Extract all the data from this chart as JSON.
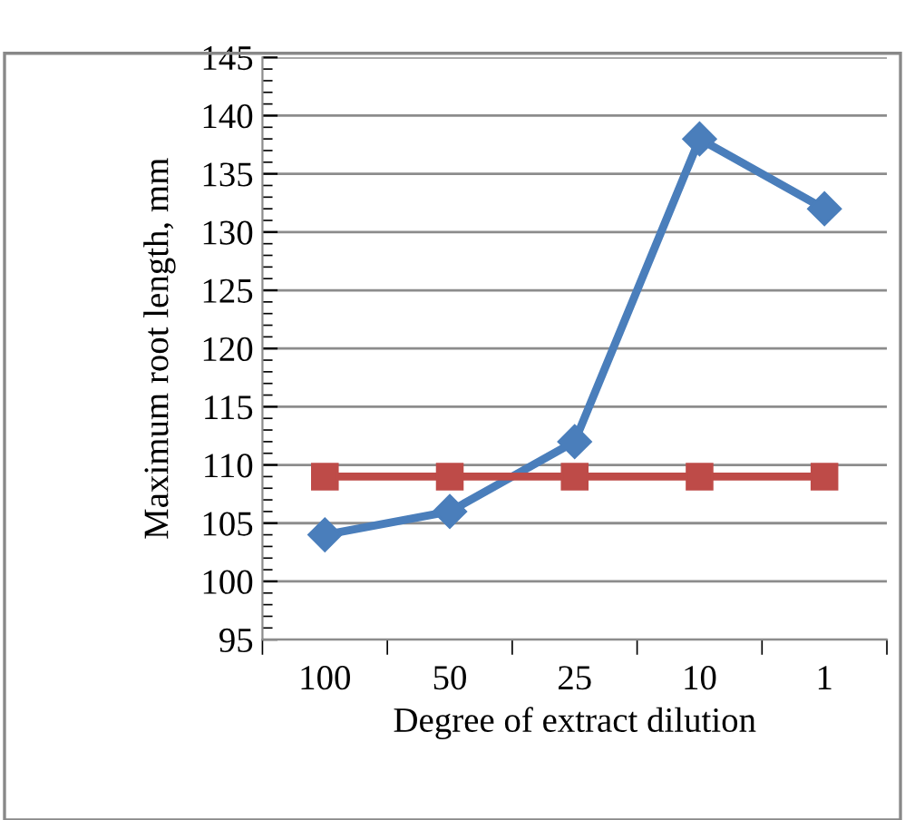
{
  "chart_data": {
    "type": "line",
    "xlabel": "Degree of extract dilution",
    "ylabel": "Maximum root length, mm",
    "categories": [
      "100",
      "50",
      "25",
      "10",
      "1"
    ],
    "series": [
      {
        "color": "#4a7ebb",
        "marker": "diamond",
        "values": [
          104,
          106,
          112,
          138,
          132
        ]
      },
      {
        "color": "#be4b48",
        "marker": "square",
        "values": [
          109,
          109,
          109,
          109,
          109
        ]
      }
    ],
    "ylim": [
      95,
      145
    ],
    "yticks": [
      95,
      100,
      105,
      110,
      115,
      120,
      125,
      130,
      135,
      140,
      145
    ],
    "grid": "y",
    "line_style": "solid"
  }
}
